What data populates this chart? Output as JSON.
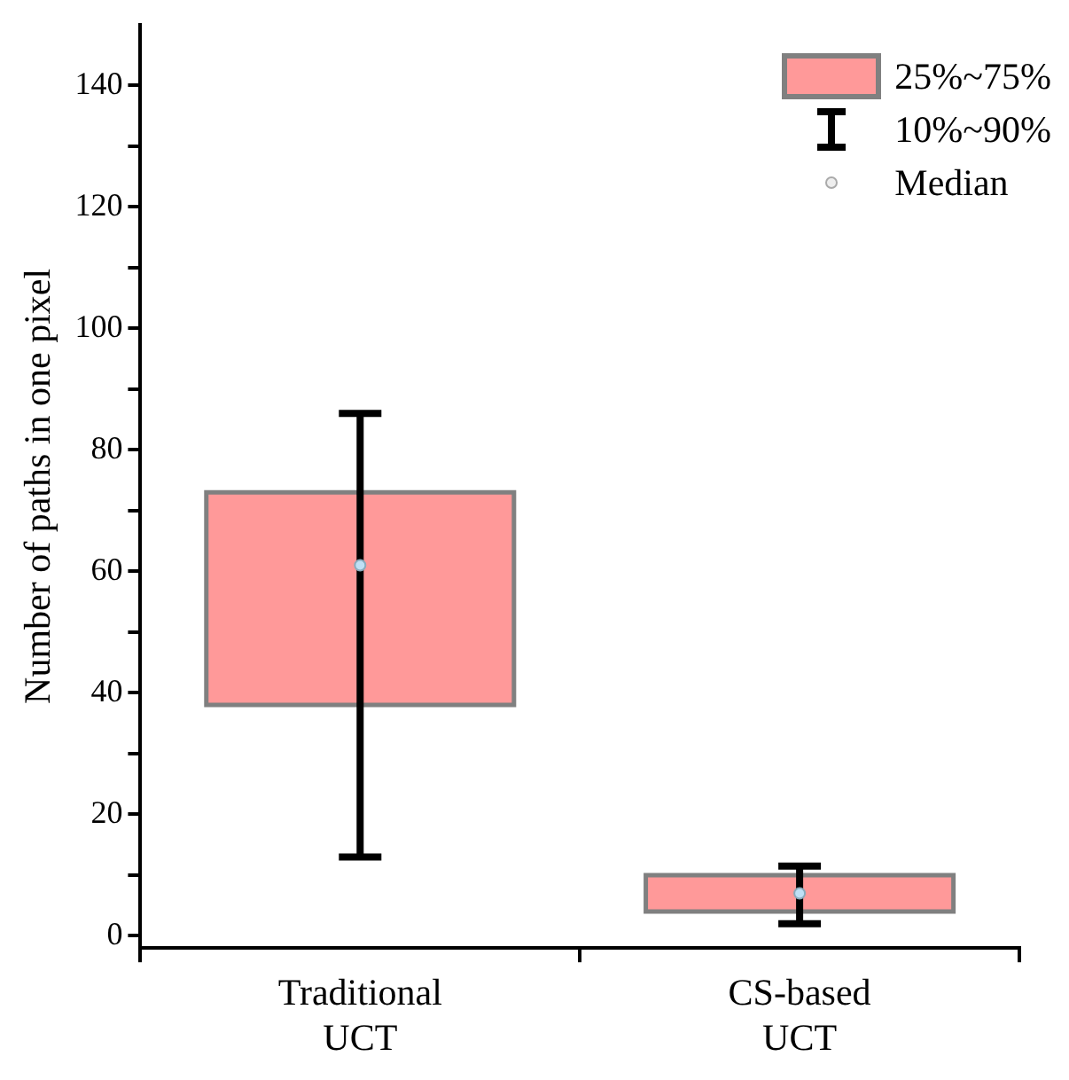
{
  "chart_data": {
    "type": "box",
    "ylabel": "Number of paths in one pixel",
    "categories": [
      "Traditional UCT",
      "CS-based UCT"
    ],
    "boxes": [
      {
        "low": 13,
        "q1": 38,
        "median": 61,
        "q3": 73,
        "high": 86
      },
      {
        "low": 2,
        "q1": 4,
        "median": 7,
        "q3": 10,
        "high": 11.5
      }
    ],
    "color": "#ff9999",
    "ylim": [
      -2,
      150
    ],
    "yticks": [
      0,
      {
        "value": 10,
        "label": null
      },
      20,
      {
        "value": 30,
        "label": null
      },
      40,
      {
        "value": 50,
        "label": null
      },
      60,
      {
        "value": 70,
        "label": null
      },
      80,
      {
        "value": 90,
        "label": null
      },
      100,
      {
        "value": 110,
        "label": null
      },
      120,
      {
        "value": 130,
        "label": null
      },
      140
    ],
    "grid": false,
    "marker": "circle",
    "annotations": [
      "25%~75%",
      "10%~90%",
      "Median"
    ]
  }
}
